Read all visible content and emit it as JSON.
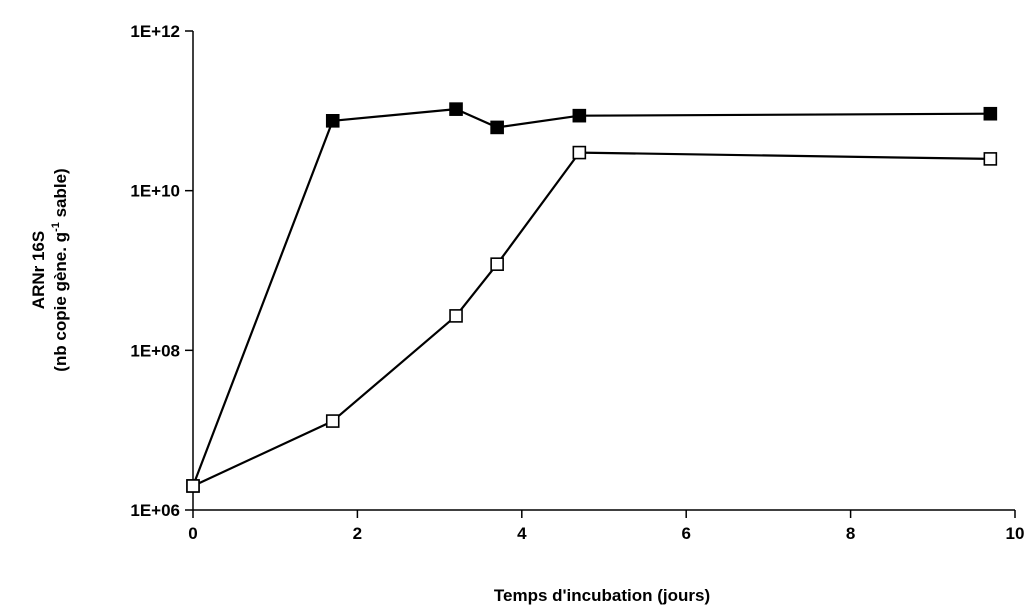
{
  "chart_data": {
    "type": "line",
    "title": "",
    "xlabel": "Temps d'incubation (jours)",
    "ylabel": {
      "line1": "ARNr 16S",
      "line2_before": "(nb copie gène. g",
      "line2_sup": "-1",
      "line2_after": " sable)"
    },
    "xlim": [
      0,
      10
    ],
    "ylim": [
      1000000,
      1000000000000
    ],
    "yscale": "log",
    "xticks": [
      0,
      2,
      4,
      6,
      8,
      10
    ],
    "xtick_labels": [
      "0",
      "2",
      "4",
      "6",
      "8",
      "10"
    ],
    "yticks": [
      1000000,
      100000000,
      10000000000,
      1000000000000
    ],
    "ytick_labels": [
      "1E+06",
      "1E+08",
      "1E+10",
      "1E+12"
    ],
    "grid": false,
    "legend": "none",
    "series": [
      {
        "marker": "filled-square",
        "color": "#000000",
        "x": [
          0,
          1.7,
          3.2,
          3.7,
          4.7,
          9.7
        ],
        "y": [
          2000000,
          75000000000,
          105000000000,
          62000000000,
          87000000000,
          92000000000
        ]
      },
      {
        "marker": "open-square",
        "color": "#000000",
        "x": [
          0,
          1.7,
          3.2,
          3.7,
          4.7,
          9.7
        ],
        "y": [
          2000000,
          13000000,
          270000000,
          1200000000,
          30000000000,
          25000000000
        ]
      }
    ]
  }
}
